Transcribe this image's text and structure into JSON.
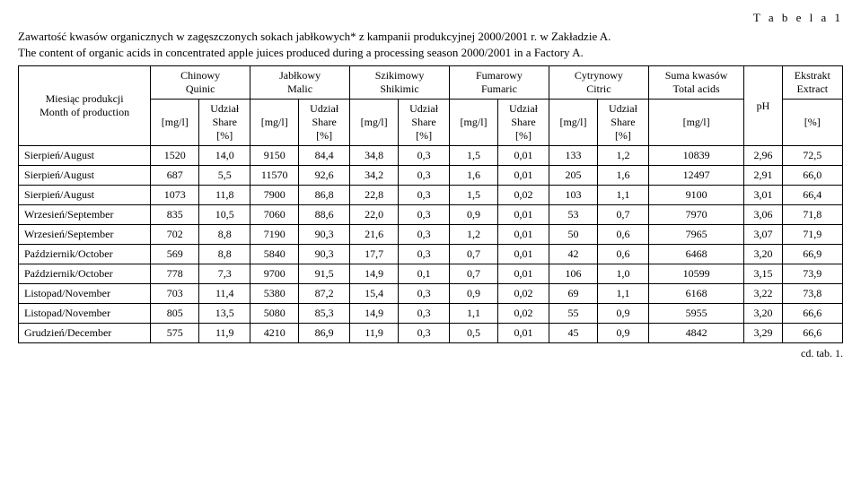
{
  "table_label": "T a b e l a 1",
  "caption_pl": "Zawartość kwasów organicznych w zagęszczonych sokach jabłkowych* z kampanii produkcyjnej 2000/2001 r. w Zakładzie A.",
  "caption_en": "The content of organic acids in concentrated apple juices produced during a processing season 2000/2001 in a Factory A.",
  "footer": "cd. tab. 1.",
  "headers": {
    "month_pl": "Miesiąc produkcji",
    "month_en": "Month of production",
    "quinic_pl": "Chinowy",
    "quinic_en": "Quinic",
    "malic_pl": "Jabłkowy",
    "malic_en": "Malic",
    "shikimic_pl": "Szikimowy",
    "shikimic_en": "Shikimic",
    "fumaric_pl": "Fumarowy",
    "fumaric_en": "Fumaric",
    "citric_pl": "Cytrynowy",
    "citric_en": "Citric",
    "sum_pl": "Suma kwasów",
    "sum_en": "Total acids",
    "ph": "pH",
    "extract_pl": "Ekstrakt",
    "extract_en": "Extract",
    "mgl": "[mg/l]",
    "share_pl": "Udział",
    "share_en": "Share",
    "share_pct": "[%]",
    "pct": "[%]"
  },
  "rows": [
    {
      "month": "Sierpień/August",
      "c0": "1520",
      "c1": "14,0",
      "c2": "9150",
      "c3": "84,4",
      "c4": "34,8",
      "c5": "0,3",
      "c6": "1,5",
      "c7": "0,01",
      "c8": "133",
      "c9": "1,2",
      "c10": "10839",
      "c11": "2,96",
      "c12": "72,5"
    },
    {
      "month": "Sierpień/August",
      "c0": "687",
      "c1": "5,5",
      "c2": "11570",
      "c3": "92,6",
      "c4": "34,2",
      "c5": "0,3",
      "c6": "1,6",
      "c7": "0,01",
      "c8": "205",
      "c9": "1,6",
      "c10": "12497",
      "c11": "2,91",
      "c12": "66,0"
    },
    {
      "month": "Sierpień/August",
      "c0": "1073",
      "c1": "11,8",
      "c2": "7900",
      "c3": "86,8",
      "c4": "22,8",
      "c5": "0,3",
      "c6": "1,5",
      "c7": "0,02",
      "c8": "103",
      "c9": "1,1",
      "c10": "9100",
      "c11": "3,01",
      "c12": "66,4"
    },
    {
      "month": "Wrzesień/September",
      "c0": "835",
      "c1": "10,5",
      "c2": "7060",
      "c3": "88,6",
      "c4": "22,0",
      "c5": "0,3",
      "c6": "0,9",
      "c7": "0,01",
      "c8": "53",
      "c9": "0,7",
      "c10": "7970",
      "c11": "3,06",
      "c12": "71,8"
    },
    {
      "month": "Wrzesień/September",
      "c0": "702",
      "c1": "8,8",
      "c2": "7190",
      "c3": "90,3",
      "c4": "21,6",
      "c5": "0,3",
      "c6": "1,2",
      "c7": "0,01",
      "c8": "50",
      "c9": "0,6",
      "c10": "7965",
      "c11": "3,07",
      "c12": "71,9"
    },
    {
      "month": "Październik/October",
      "c0": "569",
      "c1": "8,8",
      "c2": "5840",
      "c3": "90,3",
      "c4": "17,7",
      "c5": "0,3",
      "c6": "0,7",
      "c7": "0,01",
      "c8": "42",
      "c9": "0,6",
      "c10": "6468",
      "c11": "3,20",
      "c12": "66,9"
    },
    {
      "month": "Październik/October",
      "c0": "778",
      "c1": "7,3",
      "c2": "9700",
      "c3": "91,5",
      "c4": "14,9",
      "c5": "0,1",
      "c6": "0,7",
      "c7": "0,01",
      "c8": "106",
      "c9": "1,0",
      "c10": "10599",
      "c11": "3,15",
      "c12": "73,9"
    },
    {
      "month": "Listopad/November",
      "c0": "703",
      "c1": "11,4",
      "c2": "5380",
      "c3": "87,2",
      "c4": "15,4",
      "c5": "0,3",
      "c6": "0,9",
      "c7": "0,02",
      "c8": "69",
      "c9": "1,1",
      "c10": "6168",
      "c11": "3,22",
      "c12": "73,8"
    },
    {
      "month": "Listopad/November",
      "c0": "805",
      "c1": "13,5",
      "c2": "5080",
      "c3": "85,3",
      "c4": "14,9",
      "c5": "0,3",
      "c6": "1,1",
      "c7": "0,02",
      "c8": "55",
      "c9": "0,9",
      "c10": "5955",
      "c11": "3,20",
      "c12": "66,6"
    },
    {
      "month": "Grudzień/December",
      "c0": "575",
      "c1": "11,9",
      "c2": "4210",
      "c3": "86,9",
      "c4": "11,9",
      "c5": "0,3",
      "c6": "0,5",
      "c7": "0,01",
      "c8": "45",
      "c9": "0,9",
      "c10": "4842",
      "c11": "3,29",
      "c12": "66,6"
    }
  ]
}
